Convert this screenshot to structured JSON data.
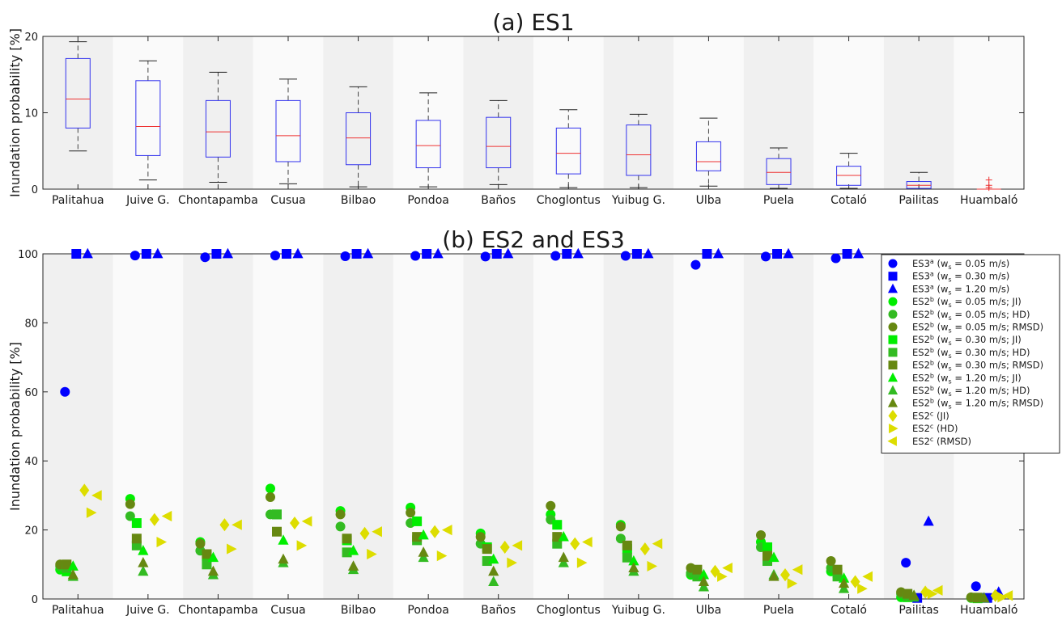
{
  "chart_data": [
    {
      "type": "box",
      "title": "(a) ES1",
      "xlabel": "",
      "ylabel": "Inundation probability [%]",
      "ylim": [
        0,
        20
      ],
      "yticks": [
        0,
        10,
        20
      ],
      "grid": false,
      "categories": [
        "Palitahua",
        "Juive G.",
        "Chontapamba",
        "Cusua",
        "Bilbao",
        "Pondoa",
        "Baños",
        "Choglontus",
        "Yuibug G.",
        "Ulba",
        "Puela",
        "Cotaló",
        "Pailitas",
        "Huambaló"
      ],
      "boxes": [
        {
          "min": 5.0,
          "q1": 8.0,
          "median": 11.8,
          "q3": 17.1,
          "max": 19.3
        },
        {
          "min": 1.2,
          "q1": 4.4,
          "median": 8.2,
          "q3": 14.2,
          "max": 16.8
        },
        {
          "min": 0.9,
          "q1": 4.2,
          "median": 7.5,
          "q3": 11.6,
          "max": 15.3
        },
        {
          "min": 0.7,
          "q1": 3.6,
          "median": 7.0,
          "q3": 11.6,
          "max": 14.4
        },
        {
          "min": 0.3,
          "q1": 3.2,
          "median": 6.7,
          "q3": 10.0,
          "max": 13.4
        },
        {
          "min": 0.3,
          "q1": 2.8,
          "median": 5.7,
          "q3": 9.0,
          "max": 12.6
        },
        {
          "min": 0.6,
          "q1": 2.8,
          "median": 5.6,
          "q3": 9.4,
          "max": 11.6
        },
        {
          "min": 0.2,
          "q1": 2.0,
          "median": 4.7,
          "q3": 8.0,
          "max": 10.4
        },
        {
          "min": 0.2,
          "q1": 1.8,
          "median": 4.5,
          "q3": 8.4,
          "max": 9.8
        },
        {
          "min": 0.4,
          "q1": 2.4,
          "median": 3.6,
          "q3": 6.2,
          "max": 9.3
        },
        {
          "min": 0.1,
          "q1": 0.6,
          "median": 2.2,
          "q3": 4.0,
          "max": 5.4
        },
        {
          "min": 0.1,
          "q1": 0.5,
          "median": 1.8,
          "q3": 3.0,
          "max": 4.7
        },
        {
          "min": 0.0,
          "q1": 0.1,
          "median": 0.5,
          "q3": 1.0,
          "max": 2.2
        },
        {
          "min": 0.0,
          "q1": 0.0,
          "median": 0.0,
          "q3": 0.0,
          "max": 0.0,
          "outliers": [
            0.2,
            0.5,
            1.2
          ]
        }
      ]
    },
    {
      "type": "scatter",
      "title": "(b) ES2 and ES3",
      "xlabel": "",
      "ylabel": "Inundation probability [%]",
      "ylim": [
        0,
        100
      ],
      "yticks": [
        0,
        20,
        40,
        60,
        80,
        100
      ],
      "grid": false,
      "legend_position": "top-right",
      "categories": [
        "Palitahua",
        "Juive G.",
        "Chontapamba",
        "Cusua",
        "Bilbao",
        "Pondoa",
        "Baños",
        "Choglontus",
        "Yuibug G.",
        "Ulba",
        "Puela",
        "Cotaló",
        "Pailitas",
        "Huambaló"
      ],
      "series": [
        {
          "legend_prefix": "ES3",
          "legend_sup": "a",
          "legend_rest": " (w",
          "legend_sub": "s",
          "legend_tail": " = 0.05 m/s)",
          "marker": "circle",
          "color": "#0000ff",
          "values": [
            60,
            99.5,
            99,
            99.5,
            99.3,
            99.4,
            99.2,
            99.4,
            99.4,
            96.8,
            99.2,
            98.7,
            10.5,
            3.7
          ]
        },
        {
          "legend_prefix": "ES3",
          "legend_sup": "a",
          "legend_rest": " (w",
          "legend_sub": "s",
          "legend_tail": " = 0.30 m/s)",
          "marker": "square",
          "color": "#0000ff",
          "values": [
            100,
            100,
            100,
            100,
            100,
            100,
            100,
            100,
            100,
            100,
            100,
            100,
            0.3,
            0.3
          ]
        },
        {
          "legend_prefix": "ES3",
          "legend_sup": "a",
          "legend_rest": " (w",
          "legend_sub": "s",
          "legend_tail": " = 1.20 m/s)",
          "marker": "triangle-up",
          "color": "#0000ff",
          "values": [
            100,
            100,
            100,
            100,
            100,
            100,
            100,
            100,
            100,
            100,
            100,
            100,
            22.5,
            2.0
          ]
        },
        {
          "legend_prefix": "ES2",
          "legend_sup": "b",
          "legend_rest": " (w",
          "legend_sub": "s",
          "legend_tail": " = 0.05 m/s; JI)",
          "marker": "circle",
          "color": "#00ee00",
          "values": [
            8.5,
            29.0,
            16.5,
            32.0,
            25.5,
            26.5,
            19.0,
            24.5,
            21.5,
            7.0,
            16.5,
            8.0,
            0.5,
            0.3
          ]
        },
        {
          "legend_prefix": "ES2",
          "legend_sup": "b",
          "legend_rest": " (w",
          "legend_sub": "s",
          "legend_tail": " = 0.05 m/s; HD)",
          "marker": "circle",
          "color": "#33bb22",
          "values": [
            9.5,
            24.0,
            14.0,
            24.5,
            21.0,
            22.0,
            16.0,
            23.0,
            17.5,
            7.5,
            15.0,
            9.0,
            1.5,
            0.4
          ]
        },
        {
          "legend_prefix": "ES2",
          "legend_sup": "b",
          "legend_rest": " (w",
          "legend_sub": "s",
          "legend_tail": " = 0.05 m/s; RMSD)",
          "marker": "circle",
          "color": "#668811",
          "values": [
            10.0,
            27.5,
            16.0,
            29.5,
            24.5,
            25.0,
            18.0,
            27.0,
            21.0,
            9.0,
            18.5,
            11.0,
            2.0,
            0.5
          ]
        },
        {
          "legend_prefix": "ES2",
          "legend_sup": "b",
          "legend_rest": " (w",
          "legend_sub": "s",
          "legend_tail": " = 0.30 m/s; JI)",
          "marker": "square",
          "color": "#00ee00",
          "values": [
            8.0,
            22.0,
            12.5,
            24.5,
            17.0,
            22.5,
            15.0,
            21.5,
            14.5,
            7.5,
            15.0,
            7.5,
            0.5,
            0.2
          ]
        },
        {
          "legend_prefix": "ES2",
          "legend_sup": "b",
          "legend_rest": " (w",
          "legend_sub": "s",
          "legend_tail": " = 0.30 m/s; HD)",
          "marker": "square",
          "color": "#33bb22",
          "values": [
            9.0,
            15.5,
            10.0,
            24.5,
            13.5,
            17.0,
            11.0,
            16.0,
            12.0,
            6.5,
            11.0,
            6.5,
            0.8,
            0.3
          ]
        },
        {
          "legend_prefix": "ES2",
          "legend_sup": "b",
          "legend_rest": " (w",
          "legend_sub": "s",
          "legend_tail": " = 0.30 m/s; RMSD)",
          "marker": "square",
          "color": "#668811",
          "values": [
            10.0,
            17.5,
            13.0,
            19.5,
            17.5,
            18.0,
            14.5,
            18.0,
            15.5,
            8.5,
            12.5,
            8.5,
            1.5,
            0.4
          ]
        },
        {
          "legend_prefix": "ES2",
          "legend_sup": "b",
          "legend_rest": " (w",
          "legend_sub": "s",
          "legend_tail": " = 1.20 m/s; JI)",
          "marker": "triangle-up",
          "color": "#00ee00",
          "values": [
            9.5,
            14.0,
            12.0,
            17.0,
            14.0,
            18.5,
            11.5,
            18.0,
            11.0,
            7.0,
            12.0,
            6.0,
            1.0,
            0.3
          ]
        },
        {
          "legend_prefix": "ES2",
          "legend_sup": "b",
          "legend_rest": " (w",
          "legend_sub": "s",
          "legend_tail": " = 1.20 m/s; HD)",
          "marker": "triangle-up",
          "color": "#33bb22",
          "values": [
            6.5,
            8.0,
            7.0,
            10.5,
            8.5,
            12.0,
            5.0,
            10.5,
            8.0,
            3.5,
            7.0,
            3.0,
            0.5,
            0.2
          ]
        },
        {
          "legend_prefix": "ES2",
          "legend_sup": "b",
          "legend_rest": " (w",
          "legend_sub": "s",
          "legend_tail": " = 1.20 m/s; RMSD)",
          "marker": "triangle-up",
          "color": "#668811",
          "values": [
            7.0,
            10.5,
            8.0,
            11.5,
            9.5,
            13.5,
            8.0,
            12.0,
            9.0,
            5.0,
            6.5,
            4.5,
            1.0,
            0.3
          ]
        },
        {
          "legend_prefix": "ES2",
          "legend_sup": "c",
          "legend_rest": " (JI)",
          "legend_sub": "",
          "legend_tail": "",
          "marker": "diamond",
          "color": "#dddd00",
          "values": [
            31.5,
            23.0,
            21.5,
            22.0,
            19.0,
            19.5,
            15.0,
            16.0,
            14.5,
            8.0,
            7.0,
            5.0,
            2.0,
            1.0
          ]
        },
        {
          "legend_prefix": "ES2",
          "legend_sup": "c",
          "legend_rest": " (HD)",
          "legend_sub": "",
          "legend_tail": "",
          "marker": "triangle-right",
          "color": "#dddd00",
          "values": [
            25.0,
            16.5,
            14.5,
            15.5,
            13.0,
            12.5,
            10.5,
            10.5,
            9.5,
            6.5,
            4.5,
            3.0,
            1.5,
            0.5
          ]
        },
        {
          "legend_prefix": "ES2",
          "legend_sup": "c",
          "legend_rest": " (RMSD)",
          "legend_sub": "",
          "legend_tail": "",
          "marker": "triangle-left",
          "color": "#dddd00",
          "values": [
            30.0,
            24.0,
            21.5,
            22.5,
            19.5,
            20.0,
            15.5,
            16.5,
            16.0,
            9.0,
            8.5,
            6.5,
            2.5,
            1.0
          ]
        }
      ]
    }
  ]
}
